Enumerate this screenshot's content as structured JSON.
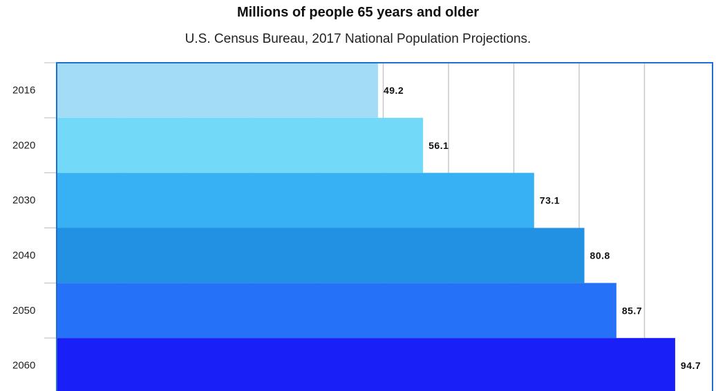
{
  "chart_data": {
    "type": "bar",
    "orientation": "horizontal",
    "title": "Millions of people 65 years and older",
    "subtitle": "U.S. Census Bureau, 2017 National Population Projections.",
    "categories": [
      "2016",
      "2020",
      "2030",
      "2040",
      "2050",
      "2060"
    ],
    "values": [
      49.2,
      56.1,
      73.1,
      80.8,
      85.7,
      94.7
    ],
    "data_labels": [
      "49.2",
      "56.1",
      "73.1",
      "80.8",
      "85.7",
      "94.7"
    ],
    "xlim": [
      0,
      100
    ],
    "grid": true,
    "legend": "none",
    "xlabel": "",
    "ylabel": ""
  },
  "colors": {
    "bars": [
      "#a3ddf5",
      "#72d9f9",
      "#38b0f4",
      "#2290e3",
      "#2571f7",
      "#1820f7"
    ],
    "frame": "#1f6fd1",
    "grid": "#c8c8c8"
  }
}
